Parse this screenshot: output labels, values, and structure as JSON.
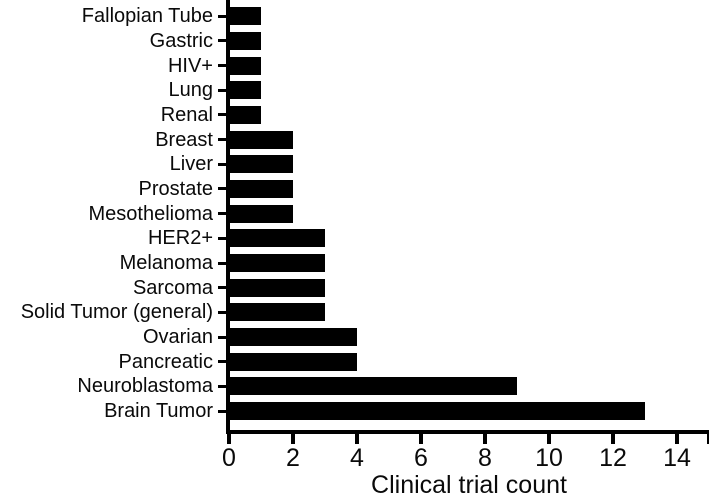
{
  "chart_data": {
    "type": "bar",
    "orientation": "horizontal",
    "title": "",
    "xlabel": "Clinical trial count",
    "ylabel": "",
    "categories": [
      "Fallopian Tube",
      "Gastric",
      "HIV+",
      "Lung",
      "Renal",
      "Breast",
      "Liver",
      "Prostate",
      "Mesothelioma",
      "HER2+",
      "Melanoma",
      "Sarcoma",
      "Solid Tumor (general)",
      "Ovarian",
      "Pancreatic",
      "Neuroblastoma",
      "Brain Tumor"
    ],
    "values": [
      1,
      1,
      1,
      1,
      1,
      2,
      2,
      2,
      2,
      3,
      3,
      3,
      3,
      4,
      4,
      9,
      13
    ],
    "x_ticks": [
      0,
      2,
      4,
      6,
      8,
      10,
      12,
      14
    ],
    "xlim": [
      0,
      15
    ],
    "bar_color": "#000000",
    "axis_color": "#000000",
    "background_color": "#ffffff",
    "grid": false,
    "legend": null
  }
}
